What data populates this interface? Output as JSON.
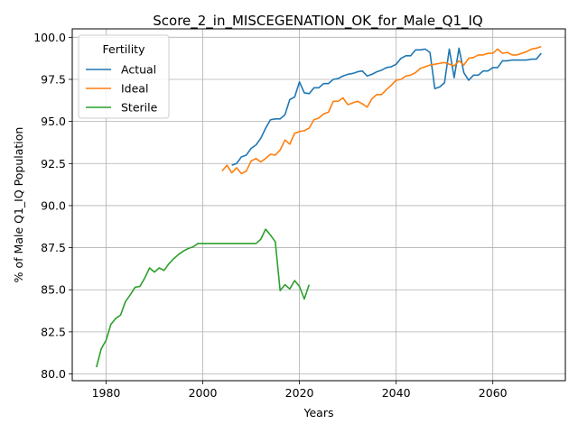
{
  "chart_data": {
    "type": "line",
    "title": "Score_2_in_MISCEGENATION_OK_for_Male_Q1_IQ",
    "xlabel": "Years",
    "ylabel": "% of Male Q1_IQ Population",
    "xlim": [
      1973,
      2075
    ],
    "ylim": [
      79.6,
      100.5
    ],
    "xticks": [
      1980,
      2000,
      2020,
      2040,
      2060
    ],
    "yticks": [
      80.0,
      82.5,
      85.0,
      87.5,
      90.0,
      92.5,
      95.0,
      97.5,
      100.0
    ],
    "xtick_labels": [
      "1980",
      "2000",
      "2020",
      "2040",
      "2060"
    ],
    "ytick_labels": [
      "80.0",
      "82.5",
      "85.0",
      "87.5",
      "90.0",
      "92.5",
      "95.0",
      "97.5",
      "100.0"
    ],
    "grid": true,
    "legend": {
      "title": "Fertility",
      "position": "upper left"
    },
    "series": [
      {
        "name": "Actual",
        "color": "#1f77b4",
        "x": [
          2006,
          2007,
          2008,
          2009,
          2010,
          2011,
          2012,
          2013,
          2014,
          2015,
          2016,
          2017,
          2018,
          2019,
          2020,
          2021,
          2022,
          2023,
          2024,
          2025,
          2026,
          2027,
          2028,
          2029,
          2030,
          2031,
          2032,
          2033,
          2034,
          2035,
          2036,
          2037,
          2038,
          2039,
          2040,
          2041,
          2042,
          2043,
          2044,
          2045,
          2046,
          2047,
          2048,
          2049,
          2050,
          2051,
          2052,
          2053,
          2054,
          2055,
          2056,
          2057,
          2058,
          2059,
          2060,
          2061,
          2062,
          2063,
          2064,
          2065,
          2066,
          2067,
          2068,
          2069,
          2070
        ],
        "y": [
          92.4,
          92.5,
          92.9,
          93.0,
          93.4,
          93.6,
          94.0,
          94.6,
          95.1,
          95.15,
          95.15,
          95.4,
          96.3,
          96.45,
          97.35,
          96.7,
          96.65,
          97.0,
          97.0,
          97.25,
          97.25,
          97.5,
          97.55,
          97.7,
          97.8,
          97.85,
          97.95,
          98.0,
          97.7,
          97.8,
          97.95,
          98.05,
          98.2,
          98.25,
          98.4,
          98.75,
          98.9,
          98.9,
          99.25,
          99.25,
          99.3,
          99.1,
          96.95,
          97.05,
          97.3,
          99.3,
          97.6,
          99.35,
          97.9,
          97.45,
          97.75,
          97.75,
          98.0,
          98.0,
          98.2,
          98.2,
          98.6,
          98.6,
          98.65,
          98.65,
          98.65,
          98.65,
          98.7,
          98.7,
          99.05
        ]
      },
      {
        "name": "Ideal",
        "color": "#ff7f0e",
        "x": [
          2004,
          2005,
          2006,
          2007,
          2008,
          2009,
          2010,
          2011,
          2012,
          2013,
          2014,
          2015,
          2016,
          2017,
          2018,
          2019,
          2020,
          2021,
          2022,
          2023,
          2024,
          2025,
          2026,
          2027,
          2028,
          2029,
          2030,
          2031,
          2032,
          2033,
          2034,
          2035,
          2036,
          2037,
          2038,
          2039,
          2040,
          2041,
          2042,
          2043,
          2044,
          2045,
          2046,
          2047,
          2048,
          2049,
          2050,
          2051,
          2052,
          2053,
          2054,
          2055,
          2056,
          2057,
          2058,
          2059,
          2060,
          2061,
          2062,
          2063,
          2064,
          2065,
          2066,
          2067,
          2068,
          2069,
          2070
        ],
        "y": [
          92.05,
          92.4,
          91.95,
          92.25,
          91.9,
          92.05,
          92.65,
          92.8,
          92.6,
          92.8,
          93.05,
          93.0,
          93.3,
          93.9,
          93.65,
          94.3,
          94.4,
          94.45,
          94.6,
          95.1,
          95.2,
          95.45,
          95.55,
          96.2,
          96.2,
          96.4,
          96.0,
          96.1,
          96.2,
          96.05,
          95.85,
          96.35,
          96.6,
          96.6,
          96.9,
          97.15,
          97.45,
          97.5,
          97.7,
          97.75,
          97.9,
          98.15,
          98.25,
          98.35,
          98.4,
          98.45,
          98.5,
          98.4,
          98.3,
          98.6,
          98.35,
          98.75,
          98.8,
          98.95,
          98.95,
          99.05,
          99.05,
          99.3,
          99.05,
          99.1,
          98.95,
          98.95,
          99.05,
          99.15,
          99.3,
          99.35,
          99.45
        ]
      },
      {
        "name": "Sterile",
        "color": "#2ca02c",
        "x": [
          1978,
          1979,
          1980,
          1981,
          1982,
          1983,
          1984,
          1985,
          1986,
          1987,
          1988,
          1989,
          1990,
          1991,
          1992,
          1993,
          1994,
          1995,
          1996,
          1997,
          1998,
          1999,
          2000,
          2001,
          2002,
          2003,
          2004,
          2005,
          2006,
          2007,
          2008,
          2009,
          2010,
          2011,
          2012,
          2013,
          2014,
          2015,
          2016,
          2017,
          2018,
          2019,
          2020,
          2021,
          2022
        ],
        "y": [
          80.4,
          81.5,
          82.0,
          82.95,
          83.3,
          83.5,
          84.3,
          84.7,
          85.15,
          85.2,
          85.7,
          86.3,
          86.05,
          86.3,
          86.15,
          86.55,
          86.85,
          87.1,
          87.3,
          87.45,
          87.55,
          87.75,
          87.75,
          87.75,
          87.75,
          87.75,
          87.75,
          87.75,
          87.75,
          87.75,
          87.75,
          87.75,
          87.75,
          87.75,
          88.0,
          88.6,
          88.25,
          87.85,
          84.95,
          85.3,
          85.05,
          85.55,
          85.2,
          84.45,
          85.3
        ]
      }
    ]
  }
}
